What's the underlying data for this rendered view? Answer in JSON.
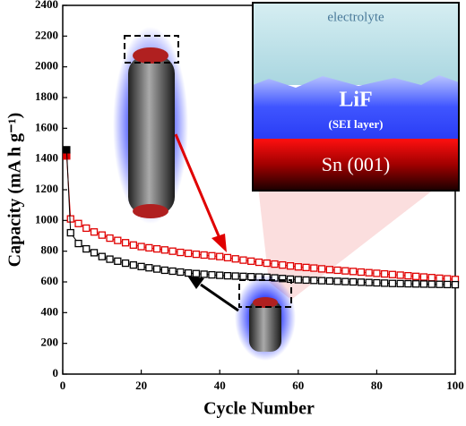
{
  "chart_data": {
    "type": "scatter",
    "xlabel": "Cycle Number",
    "ylabel": "Capacity (mA h g⁻¹)",
    "x": [
      1,
      2,
      4,
      6,
      8,
      10,
      12,
      14,
      16,
      18,
      20,
      22,
      24,
      26,
      28,
      30,
      32,
      34,
      36,
      38,
      40,
      42,
      44,
      46,
      48,
      50,
      52,
      54,
      56,
      58,
      60,
      62,
      64,
      66,
      68,
      70,
      72,
      74,
      76,
      78,
      80,
      82,
      84,
      86,
      88,
      90,
      92,
      94,
      96,
      98,
      100
    ],
    "series": [
      {
        "color": "#e00000",
        "values": [
          1420,
          1010,
          980,
          950,
          925,
          905,
          885,
          870,
          855,
          840,
          830,
          822,
          815,
          808,
          800,
          792,
          786,
          780,
          775,
          770,
          765,
          758,
          750,
          742,
          735,
          728,
          722,
          716,
          710,
          704,
          698,
          694,
          690,
          685,
          680,
          676,
          672,
          668,
          664,
          660,
          656,
          652,
          648,
          644,
          640,
          636,
          632,
          628,
          624,
          620,
          616
        ]
      },
      {
        "color": "#000000",
        "values": [
          1460,
          920,
          850,
          815,
          790,
          765,
          748,
          735,
          722,
          710,
          700,
          692,
          684,
          676,
          670,
          664,
          658,
          654,
          650,
          646,
          643,
          640,
          638,
          636,
          634,
          632,
          630,
          626,
          622,
          618,
          614,
          612,
          610,
          608,
          606,
          604,
          602,
          600,
          598,
          596,
          594,
          592,
          590,
          589,
          588,
          587,
          586,
          585,
          584,
          583,
          582
        ]
      }
    ],
    "xlim": [
      0,
      100
    ],
    "xticks": [
      0,
      20,
      40,
      60,
      80,
      100
    ],
    "ylim": [
      0,
      2400
    ],
    "yticks": [
      0,
      200,
      400,
      600,
      800,
      1000,
      1200,
      1400,
      1600,
      1800,
      2000,
      2200,
      2400
    ],
    "annotations": [
      "electrolyte",
      "LiF",
      "(SEI layer)",
      "Sn (001)"
    ]
  }
}
